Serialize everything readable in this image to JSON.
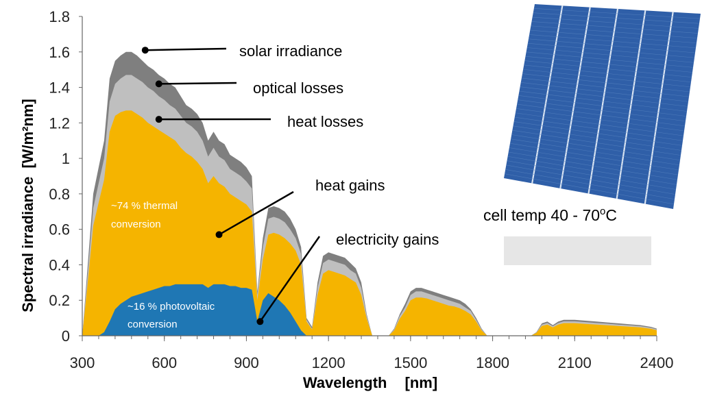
{
  "chart_data": {
    "type": "area",
    "xlabel": "Wavelength",
    "xunit": "[nm]",
    "ylabel": "Spectral irradiance",
    "yunit": "[W/m²nm]",
    "xlim": [
      300,
      2400
    ],
    "ylim": [
      0,
      1.8
    ],
    "xticks": [
      300,
      600,
      900,
      1200,
      1500,
      1800,
      2100,
      2400
    ],
    "yticks": [
      0,
      0.2,
      0.4,
      0.6,
      0.8,
      1,
      1.2,
      1.4,
      1.6,
      1.8
    ],
    "x": [
      300,
      320,
      340,
      360,
      380,
      400,
      420,
      440,
      460,
      480,
      500,
      520,
      540,
      560,
      580,
      600,
      620,
      640,
      660,
      680,
      700,
      720,
      740,
      760,
      780,
      800,
      820,
      840,
      860,
      880,
      900,
      920,
      940,
      960,
      980,
      1000,
      1020,
      1040,
      1060,
      1080,
      1100,
      1120,
      1140,
      1160,
      1180,
      1200,
      1220,
      1240,
      1260,
      1280,
      1300,
      1320,
      1340,
      1360,
      1380,
      1400,
      1420,
      1440,
      1460,
      1480,
      1500,
      1520,
      1540,
      1560,
      1580,
      1600,
      1620,
      1640,
      1660,
      1680,
      1700,
      1720,
      1740,
      1760,
      1780,
      1800,
      1820,
      1840,
      1860,
      1880,
      1900,
      1920,
      1940,
      1960,
      1980,
      2000,
      2020,
      2040,
      2060,
      2080,
      2100,
      2140,
      2180,
      2220,
      2260,
      2300,
      2340,
      2380,
      2400
    ],
    "series": [
      {
        "name": "solar irradiance",
        "color": "#7f7f7f",
        "values": [
          0,
          0.4,
          0.8,
          0.95,
          1.1,
          1.45,
          1.55,
          1.58,
          1.6,
          1.6,
          1.58,
          1.55,
          1.52,
          1.5,
          1.47,
          1.45,
          1.42,
          1.4,
          1.35,
          1.3,
          1.28,
          1.25,
          1.2,
          1.1,
          1.15,
          1.1,
          1.08,
          1.02,
          1.0,
          0.98,
          0.95,
          0.9,
          0.25,
          0.55,
          0.72,
          0.73,
          0.72,
          0.7,
          0.66,
          0.6,
          0.5,
          0.1,
          0.05,
          0.3,
          0.45,
          0.47,
          0.46,
          0.45,
          0.44,
          0.41,
          0.38,
          0.3,
          0.12,
          0,
          0,
          0,
          0,
          0.04,
          0.12,
          0.18,
          0.25,
          0.27,
          0.27,
          0.26,
          0.25,
          0.24,
          0.23,
          0.22,
          0.21,
          0.2,
          0.18,
          0.15,
          0.1,
          0.04,
          0,
          0,
          0,
          0,
          0,
          0,
          0,
          0,
          0,
          0.02,
          0.07,
          0.08,
          0.06,
          0.08,
          0.09,
          0.09,
          0.09,
          0.085,
          0.08,
          0.075,
          0.07,
          0.065,
          0.06,
          0.05,
          0.04
        ]
      },
      {
        "name": "optical losses",
        "color": "#bfbfbf",
        "values": [
          0,
          0.35,
          0.72,
          0.86,
          1.0,
          1.32,
          1.42,
          1.45,
          1.47,
          1.47,
          1.45,
          1.43,
          1.4,
          1.38,
          1.35,
          1.33,
          1.3,
          1.28,
          1.24,
          1.2,
          1.18,
          1.15,
          1.1,
          1.01,
          1.06,
          1.01,
          0.99,
          0.94,
          0.92,
          0.9,
          0.87,
          0.83,
          0.23,
          0.5,
          0.66,
          0.67,
          0.66,
          0.64,
          0.6,
          0.55,
          0.46,
          0.09,
          0.04,
          0.27,
          0.41,
          0.43,
          0.42,
          0.41,
          0.4,
          0.37,
          0.35,
          0.27,
          0.11,
          0,
          0,
          0,
          0,
          0.035,
          0.11,
          0.16,
          0.23,
          0.25,
          0.25,
          0.24,
          0.23,
          0.22,
          0.21,
          0.2,
          0.19,
          0.18,
          0.16,
          0.14,
          0.09,
          0.035,
          0,
          0,
          0,
          0,
          0,
          0,
          0,
          0,
          0,
          0.018,
          0.063,
          0.072,
          0.054,
          0.072,
          0.081,
          0.081,
          0.081,
          0.077,
          0.072,
          0.068,
          0.063,
          0.059,
          0.054,
          0.045,
          0.036
        ]
      },
      {
        "name": "heat losses",
        "color": "#f5b400",
        "values": [
          0,
          0.3,
          0.62,
          0.75,
          0.88,
          1.15,
          1.24,
          1.26,
          1.27,
          1.27,
          1.25,
          1.23,
          1.2,
          1.18,
          1.16,
          1.14,
          1.12,
          1.1,
          1.06,
          1.03,
          1.01,
          0.98,
          0.94,
          0.86,
          0.9,
          0.86,
          0.84,
          0.8,
          0.78,
          0.76,
          0.74,
          0.7,
          0.2,
          0.43,
          0.57,
          0.58,
          0.57,
          0.55,
          0.52,
          0.48,
          0.4,
          0.08,
          0.035,
          0.23,
          0.35,
          0.37,
          0.36,
          0.35,
          0.34,
          0.32,
          0.3,
          0.23,
          0.095,
          0,
          0,
          0,
          0,
          0.03,
          0.095,
          0.14,
          0.2,
          0.215,
          0.215,
          0.21,
          0.2,
          0.19,
          0.18,
          0.17,
          0.165,
          0.155,
          0.14,
          0.12,
          0.08,
          0.03,
          0,
          0,
          0,
          0,
          0,
          0,
          0,
          0,
          0,
          0.016,
          0.055,
          0.063,
          0.047,
          0.063,
          0.071,
          0.071,
          0.071,
          0.067,
          0.063,
          0.059,
          0.055,
          0.051,
          0.047,
          0.039,
          0.031
        ]
      },
      {
        "name": "electricity gains",
        "color": "#1f77b4",
        "values": [
          0,
          0,
          0,
          0,
          0.02,
          0.08,
          0.15,
          0.18,
          0.2,
          0.22,
          0.23,
          0.24,
          0.25,
          0.26,
          0.27,
          0.28,
          0.28,
          0.29,
          0.29,
          0.29,
          0.29,
          0.29,
          0.29,
          0.27,
          0.29,
          0.29,
          0.29,
          0.28,
          0.28,
          0.27,
          0.27,
          0.26,
          0.08,
          0.2,
          0.24,
          0.22,
          0.2,
          0.17,
          0.13,
          0.08,
          0.03,
          0,
          0,
          0,
          0,
          0,
          0,
          0,
          0,
          0,
          0,
          0,
          0,
          0,
          0,
          0,
          0,
          0,
          0,
          0,
          0,
          0,
          0,
          0,
          0,
          0,
          0,
          0,
          0,
          0,
          0,
          0,
          0,
          0,
          0,
          0,
          0,
          0,
          0,
          0,
          0,
          0,
          0,
          0,
          0,
          0,
          0,
          0,
          0,
          0,
          0,
          0,
          0,
          0,
          0,
          0,
          0,
          0,
          0
        ]
      }
    ],
    "annotations": [
      "solar irradiance",
      "optical losses",
      "heat losses",
      "heat gains",
      "electricity gains"
    ],
    "inner_labels": {
      "thermal_1": "~74 % thermal",
      "thermal_2": "conversion",
      "pv_1": "~16 % photovoltaic",
      "pv_2": "conversion"
    },
    "cell_caption": {
      "main": "cell temp 40 - 70",
      "sup": "o",
      "unit": "C"
    }
  },
  "colors": {
    "solar": "#7f7f7f",
    "optical": "#bfbfbf",
    "thermal": "#f5b400",
    "pv": "#1f77b4",
    "cell": "#2a5aa0"
  }
}
